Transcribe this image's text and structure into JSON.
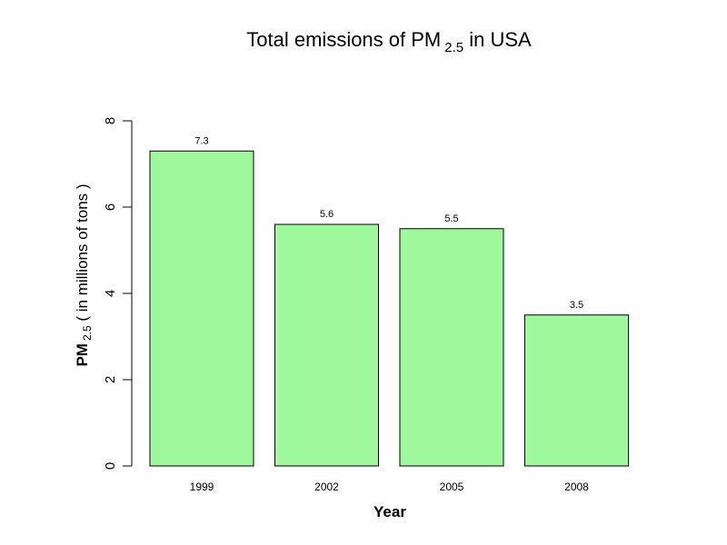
{
  "chart_data": {
    "type": "bar",
    "title_main": "Total emissions of PM",
    "title_sub": "2.5",
    "title_end": " in USA",
    "xlabel": "Year",
    "ylabel_main": "PM",
    "ylabel_sub": "2.5",
    "ylabel_end": " ( in millions of tons )",
    "categories": [
      "1999",
      "2002",
      "2005",
      "2008"
    ],
    "values": [
      7.3,
      5.6,
      5.5,
      3.5
    ],
    "value_labels": [
      "7.3",
      "5.6",
      "5.5",
      "3.5"
    ],
    "ylim": [
      0,
      8
    ],
    "yticks": [
      "0",
      "2",
      "4",
      "6",
      "8"
    ],
    "grid": false,
    "bar_color": "#9ef99a",
    "border_color": "#000000"
  }
}
